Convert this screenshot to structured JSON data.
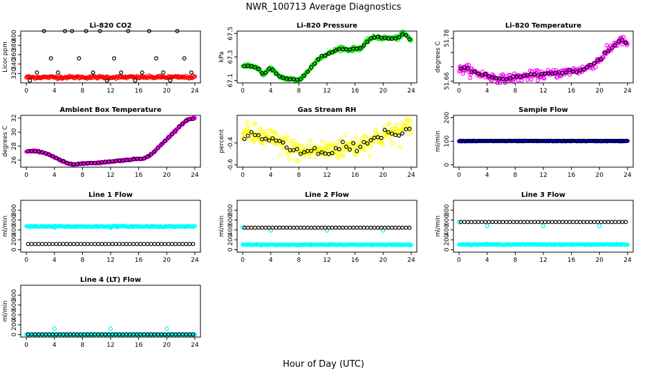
{
  "title": "NWR_100713  Average Diagnostics",
  "xlabel": "Hour of Day (UTC)",
  "chart_data": [
    {
      "type": "scatter",
      "title": "Li-820 CO2",
      "ylabel": "Licor ppm",
      "yticks": [
        320,
        340,
        360,
        380,
        400
      ],
      "ylim": [
        300,
        410
      ],
      "bg_color": "#ff0000",
      "avg_color": "#000000",
      "bg_series": {
        "kind": "flat",
        "value": 312,
        "noise": 1.5,
        "n": 200
      },
      "avg_series": {
        "kind": "hourly_pattern",
        "values": [
          305,
          322,
          410,
          352,
          322,
          410,
          410,
          352,
          410,
          322,
          410,
          305,
          352,
          322,
          410,
          305,
          322,
          410,
          352,
          322,
          305,
          410,
          352,
          322
        ]
      }
    },
    {
      "type": "scatter",
      "title": "Li-820 Pressure",
      "ylabel": "kPa",
      "yticks": [
        67.1,
        67.3,
        67.5
      ],
      "ylim": [
        67.08,
        67.52
      ],
      "bg_color": "#00dd00",
      "avg_color": "#000000",
      "curve": [
        [
          0,
          67.22
        ],
        [
          1,
          67.23
        ],
        [
          2,
          67.21
        ],
        [
          3,
          67.15
        ],
        [
          4,
          67.21
        ],
        [
          5,
          67.14
        ],
        [
          6,
          67.12
        ],
        [
          7,
          67.11
        ],
        [
          8,
          67.1
        ],
        [
          9,
          67.16
        ],
        [
          10,
          67.23
        ],
        [
          11,
          67.3
        ],
        [
          12,
          67.32
        ],
        [
          13,
          67.35
        ],
        [
          14,
          67.38
        ],
        [
          15,
          67.36
        ],
        [
          16,
          67.37
        ],
        [
          17,
          67.38
        ],
        [
          18,
          67.45
        ],
        [
          19,
          67.47
        ],
        [
          20,
          67.46
        ],
        [
          21,
          67.46
        ],
        [
          22,
          67.46
        ],
        [
          23,
          67.5
        ],
        [
          24,
          67.44
        ]
      ],
      "noise": 0.008
    },
    {
      "type": "scatter",
      "title": "Li-820 Temperature",
      "ylabel": "degrees C",
      "yticks": [
        51.66,
        51.7,
        51.74,
        51.78
      ],
      "ytick_labels": [
        "51.66",
        "",
        "",
        "51.78"
      ],
      "ylim": [
        51.655,
        51.8
      ],
      "bg_color": "#ff00ff",
      "avg_color": "#000000",
      "curve": [
        [
          0,
          51.69
        ],
        [
          1,
          51.695
        ],
        [
          2,
          51.685
        ],
        [
          3,
          51.68
        ],
        [
          4,
          51.675
        ],
        [
          5,
          51.67
        ],
        [
          6,
          51.665
        ],
        [
          7,
          51.668
        ],
        [
          8,
          51.67
        ],
        [
          9,
          51.672
        ],
        [
          10,
          51.675
        ],
        [
          11,
          51.677
        ],
        [
          12,
          51.678
        ],
        [
          13,
          51.68
        ],
        [
          14,
          51.682
        ],
        [
          15,
          51.684
        ],
        [
          16,
          51.688
        ],
        [
          17,
          51.69
        ],
        [
          18,
          51.695
        ],
        [
          19,
          51.705
        ],
        [
          20,
          51.72
        ],
        [
          21,
          51.74
        ],
        [
          22,
          51.76
        ],
        [
          23,
          51.775
        ],
        [
          24,
          51.765
        ]
      ],
      "noise": 0.006
    },
    {
      "type": "scatter",
      "title": "Ambient Box Temperature",
      "ylabel": "degrees C",
      "yticks": [
        26,
        28,
        30,
        32
      ],
      "ylim": [
        25.0,
        32.4
      ],
      "bg_color": "#ff00ff",
      "avg_color": "#000000",
      "curve": [
        [
          0,
          27.2
        ],
        [
          1,
          27.3
        ],
        [
          2,
          27.2
        ],
        [
          3,
          26.9
        ],
        [
          4,
          26.4
        ],
        [
          5,
          25.9
        ],
        [
          6,
          25.5
        ],
        [
          7,
          25.4
        ],
        [
          8,
          25.5
        ],
        [
          9,
          25.6
        ],
        [
          10,
          25.6
        ],
        [
          11,
          25.7
        ],
        [
          12,
          25.8
        ],
        [
          13,
          25.9
        ],
        [
          14,
          26.0
        ],
        [
          15,
          26.1
        ],
        [
          16,
          26.2
        ],
        [
          17,
          26.3
        ],
        [
          18,
          27.0
        ],
        [
          19,
          28.0
        ],
        [
          20,
          29.0
        ],
        [
          21,
          30.0
        ],
        [
          22,
          31.0
        ],
        [
          23,
          31.8
        ],
        [
          24,
          32.0
        ]
      ],
      "noise": 0.05
    },
    {
      "type": "scatter",
      "title": "Gas Stream RH",
      "ylabel": "percent",
      "yticks": [
        -0.6,
        -0.4
      ],
      "ylim": [
        -0.62,
        -0.15
      ],
      "bg_color": "#ffff00",
      "avg_color": "#000000",
      "curve": [
        [
          0,
          -0.32
        ],
        [
          2,
          -0.33
        ],
        [
          4,
          -0.37
        ],
        [
          6,
          -0.42
        ],
        [
          8,
          -0.48
        ],
        [
          10,
          -0.47
        ],
        [
          12,
          -0.47
        ],
        [
          14,
          -0.44
        ],
        [
          16,
          -0.43
        ],
        [
          18,
          -0.38
        ],
        [
          20,
          -0.33
        ],
        [
          22,
          -0.3
        ],
        [
          24,
          -0.26
        ]
      ],
      "noise": 0.05
    },
    {
      "type": "scatter",
      "title": "Sample Flow",
      "ylabel": "ml/min",
      "yticks": [
        0,
        100,
        200
      ],
      "ylim": [
        -10,
        210
      ],
      "bg_color": "#0000cc",
      "avg_color": "#000000",
      "curve": [
        [
          0,
          101
        ],
        [
          24,
          101
        ]
      ],
      "noise": 0.6
    },
    {
      "type": "scatter",
      "title": "Line 1 Flow",
      "ylabel": "ml/min",
      "yticks": [
        0,
        200,
        400,
        600,
        800
      ],
      "ylim": [
        -50,
        1000
      ],
      "bg_color": "#00ffff",
      "avg_color": "#000000",
      "bg_series": {
        "kind": "flat",
        "value": 470,
        "noise": 6,
        "n": 200,
        "outliers": [
          [
            4,
            445
          ],
          [
            12,
            445
          ]
        ]
      },
      "avg_series": {
        "kind": "flat",
        "value": 115
      }
    },
    {
      "type": "scatter",
      "title": "Line 2 Flow",
      "ylabel": "ml/min",
      "yticks": [
        0,
        200,
        400,
        600,
        800
      ],
      "ylim": [
        -50,
        1000
      ],
      "bg_color": "#00ffff",
      "avg_color": "#000000",
      "bg_series": {
        "kind": "flat",
        "value": 100,
        "noise": 4,
        "n": 200,
        "outliers": [
          [
            0,
            455
          ],
          [
            4,
            390
          ],
          [
            12,
            390
          ],
          [
            20,
            390
          ]
        ]
      },
      "avg_series": {
        "kind": "flat",
        "value": 445
      }
    },
    {
      "type": "scatter",
      "title": "Line 3 Flow",
      "ylabel": "ml/min",
      "yticks": [
        0,
        200,
        400,
        600,
        800
      ],
      "ylim": [
        -50,
        1000
      ],
      "bg_color": "#00ffff",
      "avg_color": "#000000",
      "bg_series": {
        "kind": "flat",
        "value": 105,
        "noise": 4,
        "n": 200,
        "outliers": [
          [
            0,
            560
          ],
          [
            4,
            480
          ],
          [
            12,
            480
          ],
          [
            20,
            480
          ]
        ]
      },
      "avg_series": {
        "kind": "flat",
        "value": 560
      }
    },
    {
      "type": "scatter",
      "title": "Line 4 (LT) Flow",
      "ylabel": "ml/min",
      "yticks": [
        0,
        200,
        400,
        600,
        800
      ],
      "ylim": [
        -50,
        1000
      ],
      "bg_color": "#00ffff",
      "avg_color": "#000000",
      "bg_series": {
        "kind": "flat",
        "value": 2,
        "noise": 2,
        "n": 200,
        "outliers": [
          [
            4,
            120
          ],
          [
            12,
            120
          ],
          [
            20,
            120
          ]
        ]
      },
      "avg_series": {
        "kind": "flat",
        "value": 5
      }
    }
  ],
  "xticks": [
    0,
    4,
    8,
    12,
    16,
    20,
    24
  ],
  "xlim": [
    -0.8,
    24.8
  ]
}
